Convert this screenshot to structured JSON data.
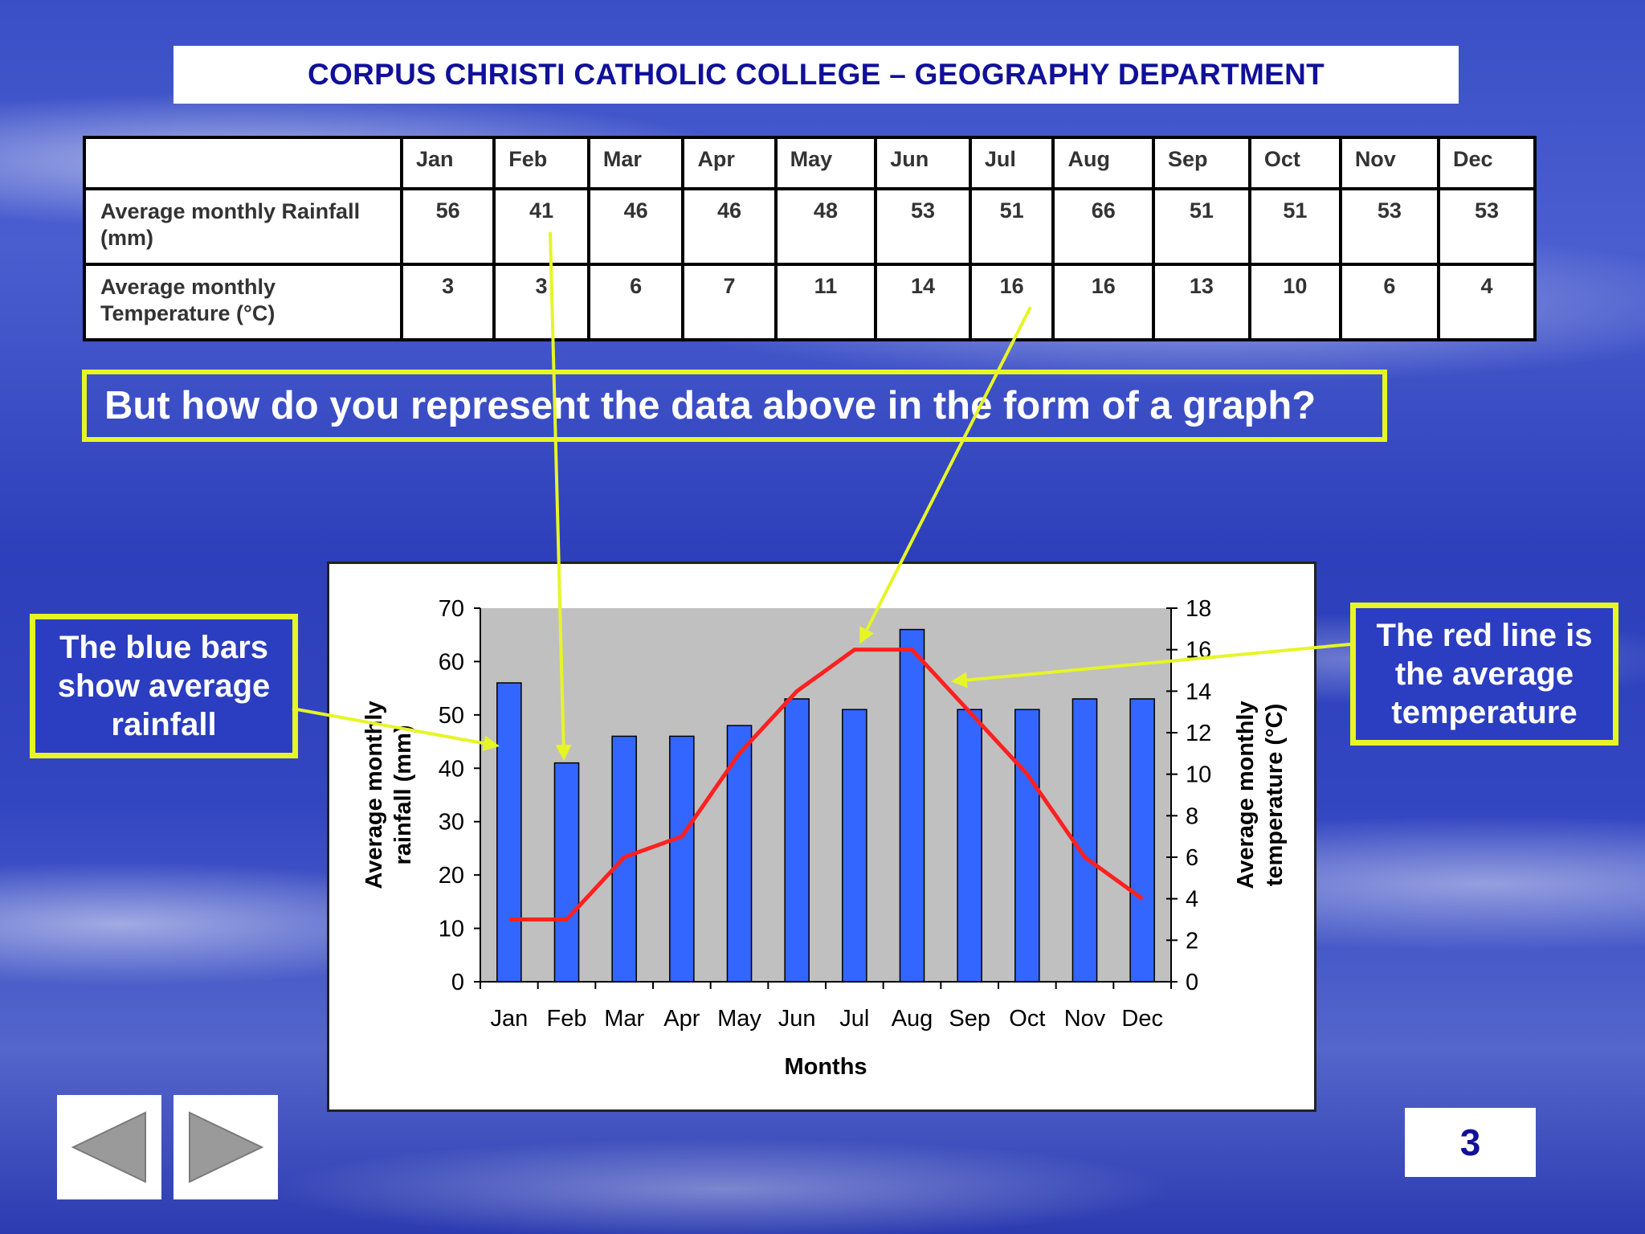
{
  "header": {
    "title": "CORPUS CHRISTI CATHOLIC COLLEGE – GEOGRAPHY DEPARTMENT"
  },
  "table": {
    "months": [
      "Jan",
      "Feb",
      "Mar",
      "Apr",
      "May",
      "Jun",
      "Jul",
      "Aug",
      "Sep",
      "Oct",
      "Nov",
      "Dec"
    ],
    "rainfall_label": "Average monthly Rainfall (mm)",
    "rainfall": [
      "56",
      "41",
      "46",
      "46",
      "48",
      "53",
      "51",
      "66",
      "51",
      "51",
      "53",
      "53"
    ],
    "temperature_label": "Average monthly Temperature (°C)",
    "temperature": [
      "3",
      "3",
      "6",
      "7",
      "11",
      "14",
      "16",
      "16",
      "13",
      "10",
      "6",
      "4"
    ]
  },
  "question": "But how do you represent the data above in the form of a graph?",
  "callouts": {
    "left": "The blue bars show average rainfall",
    "right": "The red line is the average temperature"
  },
  "colors": {
    "bar": "#3366ff",
    "line": "#ff2020",
    "plot_bg": "#c0c0c0",
    "callout_border": "#e6f526",
    "title_text": "#10109a"
  },
  "chart_data": {
    "type": "bar",
    "categories": [
      "Jan",
      "Feb",
      "Mar",
      "Apr",
      "May",
      "Jun",
      "Jul",
      "Aug",
      "Sep",
      "Oct",
      "Nov",
      "Dec"
    ],
    "series": [
      {
        "values": [
          56,
          41,
          46,
          46,
          48,
          53,
          51,
          66,
          51,
          51,
          53,
          53
        ],
        "chart": "bar",
        "axis": "left"
      },
      {
        "values": [
          3,
          3,
          6,
          7,
          11,
          14,
          16,
          16,
          13,
          10,
          6,
          4
        ],
        "chart": "line",
        "axis": "right"
      }
    ],
    "xlabel": "Months",
    "ylabel": "Average monthly rainfall (mm)",
    "y2label": "Average monthly temperature (°C)",
    "ylim": [
      0,
      70
    ],
    "y2lim": [
      0,
      18
    ],
    "yticks": [
      "0",
      "10",
      "20",
      "30",
      "40",
      "50",
      "60",
      "70"
    ],
    "y2ticks": [
      "0",
      "2",
      "4",
      "6",
      "8",
      "10",
      "12",
      "14",
      "16",
      "18"
    ],
    "grid": false,
    "legend": "none"
  },
  "navigation": {
    "prev": "previous-slide",
    "next": "next-slide"
  },
  "page_number": "3"
}
